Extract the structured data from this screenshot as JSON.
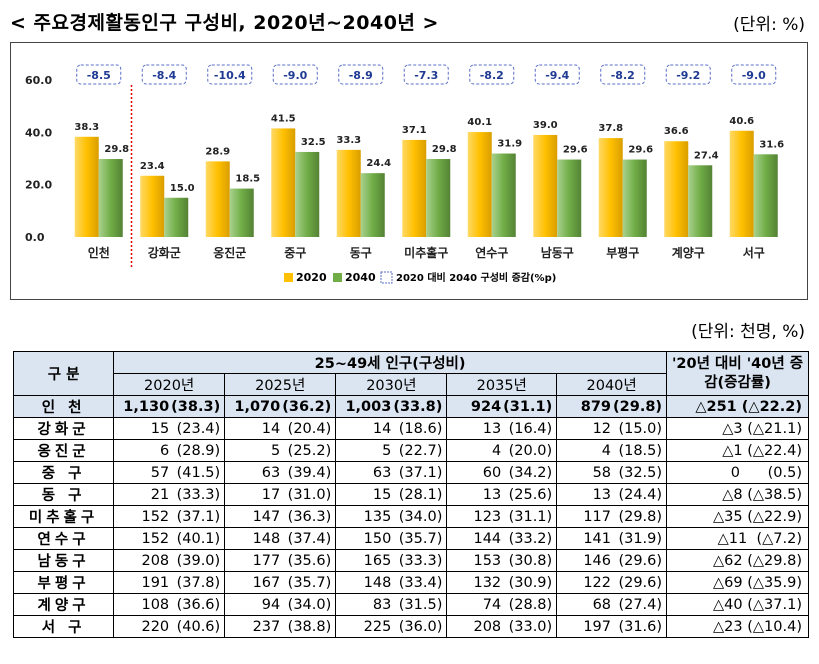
{
  "page": {
    "title": "< 주요경제활동인구 구성비, 2020년∼2040년 >",
    "unit_chart": "(단위: %)",
    "unit_table": "(단위: 천명, %)"
  },
  "chart_data": {
    "type": "bar",
    "categories": [
      "인천",
      "강화군",
      "옹진군",
      "중구",
      "동구",
      "미추홀구",
      "연수구",
      "남동구",
      "부평구",
      "계양구",
      "서구"
    ],
    "series": [
      {
        "name": "2020",
        "values": [
          38.3,
          23.4,
          28.9,
          41.5,
          33.3,
          37.1,
          40.1,
          39.0,
          37.8,
          36.6,
          40.6
        ],
        "labels": [
          "38.3",
          "23.4",
          "28.9",
          "41.5",
          "33.3",
          "37.1",
          "40.1",
          "39.0",
          "37.8",
          "36.6",
          "40.6"
        ],
        "color": "#ffc000"
      },
      {
        "name": "2040",
        "values": [
          29.8,
          15.0,
          18.5,
          32.5,
          24.4,
          29.8,
          31.9,
          29.6,
          29.6,
          27.4,
          31.6
        ],
        "labels": [
          "29.8",
          "15.0",
          "18.5",
          "32.5",
          "24.4",
          "29.8",
          "31.9",
          "29.6",
          "29.6",
          "27.4",
          "31.6"
        ],
        "color": "#70ad47"
      }
    ],
    "change_labels": [
      "-8.5",
      "-8.4",
      "-10.4",
      "-9.0",
      "-8.9",
      "-7.3",
      "-8.2",
      "-9.4",
      "-8.2",
      "-9.2",
      "-9.0"
    ],
    "change_legend": "2020 대비 2040 구성비 증감(%p)",
    "ylim": [
      0,
      60
    ],
    "yticks": [
      "0.0",
      "20.0",
      "40.0",
      "60.0"
    ],
    "grid": false,
    "legend_position": "bottom"
  },
  "table": {
    "header_group": "구    분",
    "header_span": "25~49세 인구(구성비)",
    "header_change": "'20년 대비 '40년 증감(증감률)",
    "years": [
      "2020년",
      "2025년",
      "2030년",
      "2035년",
      "2040년"
    ],
    "rows": [
      {
        "label": "인    천",
        "cells": [
          [
            "1,130",
            "(38.3)"
          ],
          [
            "1,070",
            "(36.2)"
          ],
          [
            "1,003",
            "(33.8)"
          ],
          [
            "924",
            "(31.1)"
          ],
          [
            "879",
            "(29.8)"
          ]
        ],
        "change": "△251 (△22.2)",
        "highlight": true
      },
      {
        "label": "강화군",
        "cells": [
          [
            "15",
            "(23.4)"
          ],
          [
            "14",
            "(20.4)"
          ],
          [
            "14",
            "(18.6)"
          ],
          [
            "13",
            "(16.4)"
          ],
          [
            "12",
            "(15.0)"
          ]
        ],
        "change": "△3 (△21.1)",
        "highlight": false
      },
      {
        "label": "옹진군",
        "cells": [
          [
            "6",
            "(28.9)"
          ],
          [
            "5",
            "(25.2)"
          ],
          [
            "5",
            "(22.7)"
          ],
          [
            "4",
            "(20.0)"
          ],
          [
            "4",
            "(18.5)"
          ]
        ],
        "change": "△1 (△22.4)",
        "highlight": false
      },
      {
        "label": "중    구",
        "cells": [
          [
            "57",
            "(41.5)"
          ],
          [
            "63",
            "(39.4)"
          ],
          [
            "63",
            "(37.1)"
          ],
          [
            "60",
            "(34.2)"
          ],
          [
            "58",
            "(32.5)"
          ]
        ],
        "change": "0      (0.5)",
        "highlight": false
      },
      {
        "label": "동    구",
        "cells": [
          [
            "21",
            "(33.3)"
          ],
          [
            "17",
            "(31.0)"
          ],
          [
            "15",
            "(28.1)"
          ],
          [
            "13",
            "(25.6)"
          ],
          [
            "13",
            "(24.4)"
          ]
        ],
        "change": "△8 (△38.5)",
        "highlight": false
      },
      {
        "label": "미추홀구",
        "cells": [
          [
            "152",
            "(37.1)"
          ],
          [
            "147",
            "(36.3)"
          ],
          [
            "135",
            "(34.0)"
          ],
          [
            "123",
            "(31.1)"
          ],
          [
            "117",
            "(29.8)"
          ]
        ],
        "change": "△35 (△22.9)",
        "highlight": false
      },
      {
        "label": "연수구",
        "cells": [
          [
            "152",
            "(40.1)"
          ],
          [
            "148",
            "(37.4)"
          ],
          [
            "150",
            "(35.7)"
          ],
          [
            "144",
            "(33.2)"
          ],
          [
            "141",
            "(31.9)"
          ]
        ],
        "change": "△11  (△7.2)",
        "highlight": false
      },
      {
        "label": "남동구",
        "cells": [
          [
            "208",
            "(39.0)"
          ],
          [
            "177",
            "(35.6)"
          ],
          [
            "165",
            "(33.3)"
          ],
          [
            "153",
            "(30.8)"
          ],
          [
            "146",
            "(29.6)"
          ]
        ],
        "change": "△62 (△29.8)",
        "highlight": false
      },
      {
        "label": "부평구",
        "cells": [
          [
            "191",
            "(37.8)"
          ],
          [
            "167",
            "(35.7)"
          ],
          [
            "148",
            "(33.4)"
          ],
          [
            "132",
            "(30.9)"
          ],
          [
            "122",
            "(29.6)"
          ]
        ],
        "change": "△69 (△35.9)",
        "highlight": false
      },
      {
        "label": "계양구",
        "cells": [
          [
            "108",
            "(36.6)"
          ],
          [
            "94",
            "(34.0)"
          ],
          [
            "83",
            "(31.5)"
          ],
          [
            "74",
            "(28.8)"
          ],
          [
            "68",
            "(27.4)"
          ]
        ],
        "change": "△40 (△37.1)",
        "highlight": false
      },
      {
        "label": "서    구",
        "cells": [
          [
            "220",
            "(40.6)"
          ],
          [
            "237",
            "(38.8)"
          ],
          [
            "225",
            "(36.0)"
          ],
          [
            "208",
            "(33.0)"
          ],
          [
            "197",
            "(31.6)"
          ]
        ],
        "change": "△23 (△10.4)",
        "highlight": false
      }
    ]
  }
}
